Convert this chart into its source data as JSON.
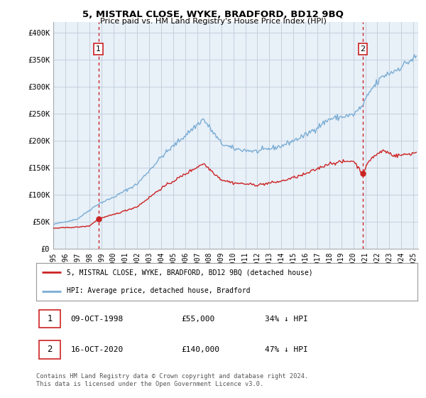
{
  "title": "5, MISTRAL CLOSE, WYKE, BRADFORD, BD12 9BQ",
  "subtitle": "Price paid vs. HM Land Registry's House Price Index (HPI)",
  "sale1_date": "09-OCT-1998",
  "sale1_price": 55000,
  "sale1_label": "34% ↓ HPI",
  "sale2_date": "16-OCT-2020",
  "sale2_price": 140000,
  "sale2_label": "47% ↓ HPI",
  "legend_property": "5, MISTRAL CLOSE, WYKE, BRADFORD, BD12 9BQ (detached house)",
  "legend_hpi": "HPI: Average price, detached house, Bradford",
  "footnote": "Contains HM Land Registry data © Crown copyright and database right 2024.\nThis data is licensed under the Open Government Licence v3.0.",
  "property_color": "#cc2222",
  "hpi_color": "#7aadd4",
  "vline_color": "#cc2222",
  "background_color": "#ffffff",
  "chart_bg_color": "#e8f0f8",
  "grid_color": "#c0ccd8"
}
